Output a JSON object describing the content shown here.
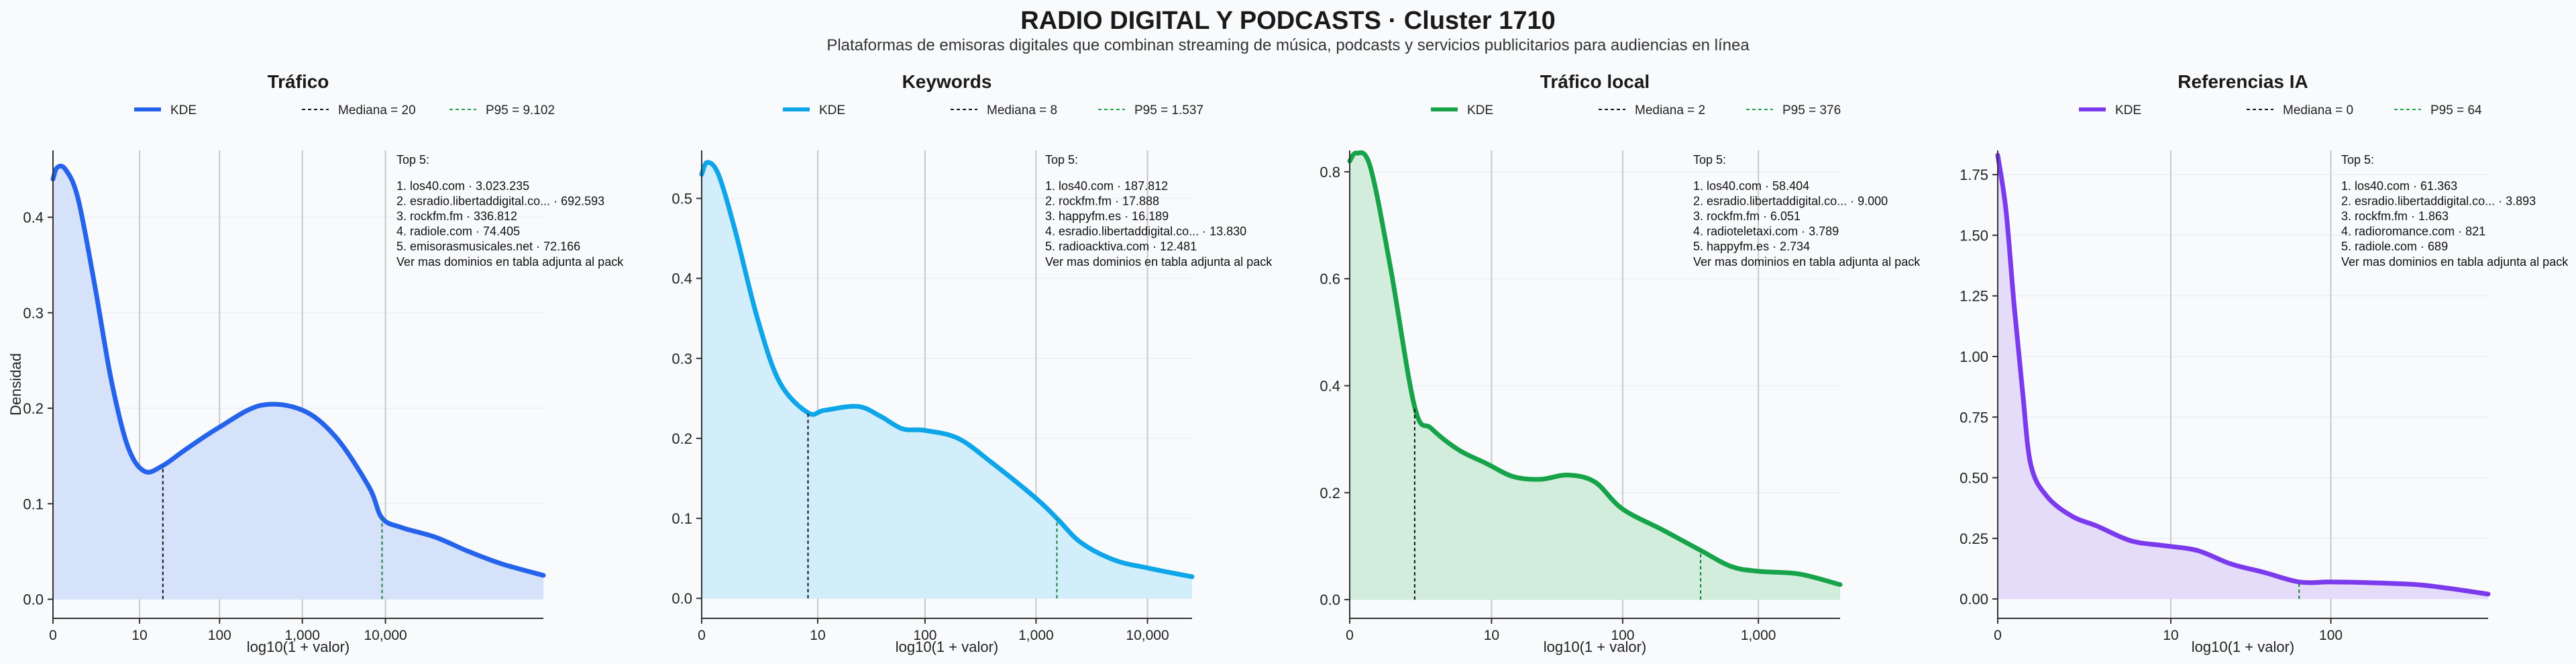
{
  "header": {
    "title": "RADIO DIGITAL Y PODCASTS · Cluster 1710",
    "subtitle": "Plataformas de emisoras digitales que combinan streaming de música, podcasts y servicios publicitarios para audiencias en línea"
  },
  "chart_data": [
    {
      "type": "area",
      "title": "Tráfico",
      "xlabel": "log10(1 + valor)",
      "ylabel": "Densidad",
      "color": "#2563eb",
      "fill": "#d6e1fa",
      "xlim": [
        0,
        5.9
      ],
      "ylim": [
        -0.02,
        0.47
      ],
      "x_ticks": [
        {
          "v": 0,
          "label": "0"
        },
        {
          "v": 1.041,
          "label": "10"
        },
        {
          "v": 2.004,
          "label": "100"
        },
        {
          "v": 3.0,
          "label": "1,000"
        },
        {
          "v": 4.0,
          "label": "10,000"
        }
      ],
      "y_ticks": [
        {
          "v": 0,
          "label": "0.0"
        },
        {
          "v": 0.1,
          "label": "0.1"
        },
        {
          "v": 0.2,
          "label": "0.2"
        },
        {
          "v": 0.3,
          "label": "0.3"
        },
        {
          "v": 0.4,
          "label": "0.4"
        }
      ],
      "legend": {
        "kde": "KDE",
        "median": "Mediana = 20",
        "p95": "P95 = 9.102"
      },
      "median_x": 1.322,
      "p95_x": 3.959,
      "kde": {
        "x": [
          0,
          0.05,
          0.15,
          0.3,
          0.5,
          0.7,
          0.9,
          1.1,
          1.322,
          1.6,
          2.0,
          2.5,
          3.0,
          3.4,
          3.8,
          3.959,
          4.2,
          4.6,
          5.0,
          5.4,
          5.9
        ],
        "y": [
          0.44,
          0.452,
          0.45,
          0.42,
          0.33,
          0.23,
          0.16,
          0.134,
          0.14,
          0.157,
          0.18,
          0.203,
          0.198,
          0.17,
          0.118,
          0.085,
          0.075,
          0.065,
          0.05,
          0.037,
          0.025
        ]
      },
      "top5": {
        "title": "Top 5:",
        "items": [
          "1. los40.com · 3.023.235",
          "2. esradio.libertaddigital.co... · 692.593",
          "3. rockfm.fm · 336.812",
          "4. radiole.com · 74.405",
          "5. emisorasmusicales.net · 72.166"
        ],
        "footer": "Ver mas dominios en tabla adjunta al pack"
      }
    },
    {
      "type": "area",
      "title": "Keywords",
      "xlabel": "log10(1 + valor)",
      "ylabel": "",
      "color": "#0ea5e9",
      "fill": "#d2eefa",
      "xlim": [
        0,
        4.4
      ],
      "ylim": [
        -0.025,
        0.56
      ],
      "x_ticks": [
        {
          "v": 0,
          "label": "0"
        },
        {
          "v": 1.041,
          "label": "10"
        },
        {
          "v": 2.004,
          "label": "100"
        },
        {
          "v": 3.0,
          "label": "1,000"
        },
        {
          "v": 4.0,
          "label": "10,000"
        }
      ],
      "y_ticks": [
        {
          "v": 0,
          "label": "0.0"
        },
        {
          "v": 0.1,
          "label": "0.1"
        },
        {
          "v": 0.2,
          "label": "0.2"
        },
        {
          "v": 0.3,
          "label": "0.3"
        },
        {
          "v": 0.4,
          "label": "0.4"
        },
        {
          "v": 0.5,
          "label": "0.5"
        }
      ],
      "legend": {
        "kde": "KDE",
        "median": "Mediana = 8",
        "p95": "P95 = 1.537"
      },
      "median_x": 0.954,
      "p95_x": 3.187,
      "kde": {
        "x": [
          0,
          0.05,
          0.15,
          0.3,
          0.5,
          0.7,
          0.954,
          1.1,
          1.4,
          1.6,
          1.8,
          2.0,
          2.3,
          2.6,
          3.0,
          3.187,
          3.4,
          3.7,
          4.0,
          4.4
        ],
        "y": [
          0.53,
          0.545,
          0.53,
          0.46,
          0.35,
          0.27,
          0.232,
          0.235,
          0.24,
          0.228,
          0.212,
          0.21,
          0.2,
          0.17,
          0.125,
          0.1,
          0.07,
          0.048,
          0.038,
          0.027
        ]
      },
      "top5": {
        "title": "Top 5:",
        "items": [
          "1. los40.com · 187.812",
          "2. rockfm.fm · 17.888",
          "3. happyfm.es · 16.189",
          "4. esradio.libertaddigital.co... · 13.830",
          "5. radioacktiva.com · 12.481"
        ],
        "footer": "Ver mas dominios en tabla adjunta al pack"
      }
    },
    {
      "type": "area",
      "title": "Tráfico local",
      "xlabel": "log10(1 + valor)",
      "ylabel": "",
      "color": "#16a34a",
      "fill": "#d2eddb",
      "xlim": [
        0,
        3.6
      ],
      "ylim": [
        -0.035,
        0.84
      ],
      "x_ticks": [
        {
          "v": 0,
          "label": "0"
        },
        {
          "v": 1.041,
          "label": "10"
        },
        {
          "v": 2.004,
          "label": "100"
        },
        {
          "v": 3.0,
          "label": "1,000"
        }
      ],
      "y_ticks": [
        {
          "v": 0,
          "label": "0.0"
        },
        {
          "v": 0.2,
          "label": "0.2"
        },
        {
          "v": 0.4,
          "label": "0.4"
        },
        {
          "v": 0.6,
          "label": "0.6"
        },
        {
          "v": 0.8,
          "label": "0.8"
        }
      ],
      "legend": {
        "kde": "KDE",
        "median": "Mediana = 2",
        "p95": "P95 = 376"
      },
      "median_x": 0.477,
      "p95_x": 2.576,
      "kde": {
        "x": [
          0,
          0.05,
          0.15,
          0.3,
          0.477,
          0.6,
          0.8,
          1.0,
          1.2,
          1.4,
          1.6,
          1.8,
          2.0,
          2.3,
          2.576,
          2.8,
          3.0,
          3.3,
          3.6
        ],
        "y": [
          0.82,
          0.835,
          0.81,
          0.62,
          0.36,
          0.32,
          0.28,
          0.255,
          0.23,
          0.225,
          0.233,
          0.22,
          0.17,
          0.13,
          0.092,
          0.062,
          0.053,
          0.048,
          0.028
        ]
      },
      "top5": {
        "title": "Top 5:",
        "items": [
          "1. los40.com · 58.404",
          "2. esradio.libertaddigital.co... · 9.000",
          "3. rockfm.fm · 6.051",
          "4. radioteletaxi.com · 3.789",
          "5. happyfm.es · 2.734"
        ],
        "footer": "Ver mas dominios en tabla adjunta al pack"
      }
    },
    {
      "type": "area",
      "title": "Referencias IA",
      "xlabel": "log10(1 + valor)",
      "ylabel": "",
      "color": "#7c3aed",
      "fill": "#e5dcfa",
      "xlim": [
        0,
        2.95
      ],
      "ylim": [
        -0.08,
        1.85
      ],
      "x_ticks": [
        {
          "v": 0,
          "label": "0"
        },
        {
          "v": 1.041,
          "label": "10"
        },
        {
          "v": 2.004,
          "label": "100"
        }
      ],
      "y_ticks": [
        {
          "v": 0,
          "label": "0.00"
        },
        {
          "v": 0.25,
          "label": "0.25"
        },
        {
          "v": 0.5,
          "label": "0.50"
        },
        {
          "v": 0.75,
          "label": "0.75"
        },
        {
          "v": 1.0,
          "label": "1.00"
        },
        {
          "v": 1.25,
          "label": "1.25"
        },
        {
          "v": 1.5,
          "label": "1.50"
        },
        {
          "v": 1.75,
          "label": "1.75"
        }
      ],
      "legend": {
        "kde": "KDE",
        "median": "Mediana = 0",
        "p95": "P95 = 64"
      },
      "median_x": 0,
      "p95_x": 1.813,
      "kde": {
        "x": [
          0,
          0.05,
          0.1,
          0.15,
          0.2,
          0.3,
          0.45,
          0.6,
          0.8,
          1.0,
          1.2,
          1.4,
          1.6,
          1.813,
          2.0,
          2.2,
          2.5,
          2.7,
          2.95
        ],
        "y": [
          1.83,
          1.6,
          1.2,
          0.85,
          0.55,
          0.42,
          0.34,
          0.3,
          0.24,
          0.22,
          0.2,
          0.145,
          0.11,
          0.07,
          0.07,
          0.068,
          0.06,
          0.045,
          0.02
        ]
      },
      "top5": {
        "title": "Top 5:",
        "items": [
          "1. los40.com · 61.363",
          "2. esradio.libertaddigital.co... · 3.893",
          "3. rockfm.fm · 1.863",
          "4. radioromance.com · 821",
          "5. radiole.com · 689"
        ],
        "footer": "Ver mas dominios en tabla adjunta al pack"
      }
    }
  ]
}
